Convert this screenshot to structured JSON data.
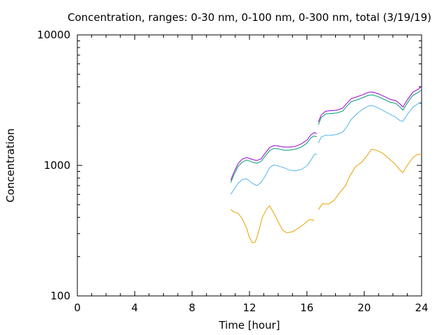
{
  "chart_data": {
    "type": "line",
    "title": "Concentration, ranges: 0-30 nm, 0-100 nm, 0-300 nm, total (3/19/19)",
    "xlabel": "Time [hour]",
    "ylabel": "Concentration",
    "xlim": [
      0,
      24
    ],
    "ylim": [
      100,
      10000
    ],
    "yscale": "log",
    "grid": false,
    "legend": "none",
    "xticks": [
      0,
      4,
      8,
      12,
      16,
      20,
      24
    ],
    "yticks": [
      100,
      1000,
      10000
    ],
    "xtick_labels": [
      "0",
      "4",
      "8",
      "12",
      "16",
      "20",
      "24"
    ],
    "ytick_labels": [
      "100",
      "1000",
      "10000"
    ],
    "series": [
      {
        "color": "#e6a000",
        "segments": [
          [
            [
              10.7,
              460
            ],
            [
              10.9,
              440
            ],
            [
              11.2,
              430
            ],
            [
              11.5,
              390
            ],
            [
              11.8,
              330
            ],
            [
              12.0,
              280
            ],
            [
              12.2,
              255
            ],
            [
              12.4,
              258
            ],
            [
              12.6,
              300
            ],
            [
              12.9,
              400
            ],
            [
              13.2,
              465
            ],
            [
              13.4,
              490
            ],
            [
              13.7,
              430
            ],
            [
              14.0,
              370
            ],
            [
              14.3,
              320
            ],
            [
              14.6,
              305
            ],
            [
              15.0,
              310
            ],
            [
              15.4,
              330
            ],
            [
              15.8,
              355
            ],
            [
              16.1,
              380
            ],
            [
              16.3,
              385
            ],
            [
              16.5,
              378
            ]
          ],
          [
            [
              16.8,
              460
            ],
            [
              17.1,
              510
            ],
            [
              17.5,
              505
            ],
            [
              17.9,
              540
            ],
            [
              18.3,
              620
            ],
            [
              18.7,
              700
            ],
            [
              19.0,
              830
            ],
            [
              19.4,
              980
            ],
            [
              19.8,
              1050
            ],
            [
              20.2,
              1190
            ],
            [
              20.5,
              1330
            ],
            [
              20.9,
              1300
            ],
            [
              21.3,
              1240
            ],
            [
              21.7,
              1130
            ],
            [
              22.1,
              1040
            ],
            [
              22.5,
              920
            ],
            [
              22.7,
              880
            ],
            [
              23.0,
              1000
            ],
            [
              23.4,
              1150
            ],
            [
              23.7,
              1210
            ],
            [
              24.0,
              1220
            ]
          ]
        ]
      },
      {
        "color": "#56b4e9",
        "segments": [
          [
            [
              10.7,
              600
            ],
            [
              10.9,
              650
            ],
            [
              11.2,
              730
            ],
            [
              11.5,
              780
            ],
            [
              11.8,
              790
            ],
            [
              12.2,
              730
            ],
            [
              12.5,
              700
            ],
            [
              12.8,
              740
            ],
            [
              13.1,
              830
            ],
            [
              13.4,
              960
            ],
            [
              13.7,
              1010
            ],
            [
              14.0,
              990
            ],
            [
              14.4,
              960
            ],
            [
              14.8,
              920
            ],
            [
              15.2,
              910
            ],
            [
              15.6,
              930
            ],
            [
              16.0,
              990
            ],
            [
              16.3,
              1100
            ],
            [
              16.5,
              1210
            ],
            [
              16.6,
              1225
            ],
            [
              16.7,
              1210
            ]
          ],
          [
            [
              16.8,
              1480
            ],
            [
              17.0,
              1650
            ],
            [
              17.3,
              1700
            ],
            [
              17.7,
              1700
            ],
            [
              18.1,
              1730
            ],
            [
              18.5,
              1800
            ],
            [
              18.8,
              1990
            ],
            [
              19.1,
              2250
            ],
            [
              19.5,
              2490
            ],
            [
              19.9,
              2700
            ],
            [
              20.3,
              2850
            ],
            [
              20.6,
              2870
            ],
            [
              21.0,
              2750
            ],
            [
              21.4,
              2600
            ],
            [
              21.8,
              2470
            ],
            [
              22.2,
              2340
            ],
            [
              22.5,
              2200
            ],
            [
              22.7,
              2180
            ],
            [
              23.0,
              2450
            ],
            [
              23.4,
              2800
            ],
            [
              23.8,
              3000
            ],
            [
              24.0,
              3050
            ]
          ]
        ]
      },
      {
        "color": "#009e73",
        "segments": [
          [
            [
              10.7,
              740
            ],
            [
              10.9,
              840
            ],
            [
              11.2,
              980
            ],
            [
              11.5,
              1060
            ],
            [
              11.8,
              1100
            ],
            [
              12.2,
              1060
            ],
            [
              12.5,
              1040
            ],
            [
              12.8,
              1070
            ],
            [
              13.1,
              1180
            ],
            [
              13.4,
              1300
            ],
            [
              13.7,
              1350
            ],
            [
              14.0,
              1340
            ],
            [
              14.4,
              1310
            ],
            [
              14.8,
              1310
            ],
            [
              15.2,
              1330
            ],
            [
              15.6,
              1380
            ],
            [
              16.0,
              1480
            ],
            [
              16.3,
              1630
            ],
            [
              16.5,
              1680
            ],
            [
              16.7,
              1660
            ]
          ],
          [
            [
              16.8,
              2050
            ],
            [
              17.0,
              2320
            ],
            [
              17.3,
              2480
            ],
            [
              17.7,
              2500
            ],
            [
              18.1,
              2520
            ],
            [
              18.5,
              2610
            ],
            [
              18.8,
              2850
            ],
            [
              19.1,
              3080
            ],
            [
              19.5,
              3180
            ],
            [
              19.9,
              3300
            ],
            [
              20.3,
              3450
            ],
            [
              20.6,
              3470
            ],
            [
              21.0,
              3350
            ],
            [
              21.4,
              3200
            ],
            [
              21.8,
              3050
            ],
            [
              22.2,
              2980
            ],
            [
              22.5,
              2800
            ],
            [
              22.7,
              2650
            ],
            [
              23.0,
              3000
            ],
            [
              23.4,
              3450
            ],
            [
              23.8,
              3650
            ],
            [
              24.0,
              3800
            ]
          ]
        ]
      },
      {
        "color": "#9400d3",
        "segments": [
          [
            [
              10.7,
              770
            ],
            [
              10.9,
              880
            ],
            [
              11.2,
              1030
            ],
            [
              11.5,
              1120
            ],
            [
              11.8,
              1150
            ],
            [
              12.2,
              1110
            ],
            [
              12.5,
              1090
            ],
            [
              12.8,
              1120
            ],
            [
              13.1,
              1240
            ],
            [
              13.4,
              1370
            ],
            [
              13.7,
              1420
            ],
            [
              14.0,
              1410
            ],
            [
              14.4,
              1380
            ],
            [
              14.8,
              1380
            ],
            [
              15.2,
              1400
            ],
            [
              15.6,
              1460
            ],
            [
              16.0,
              1560
            ],
            [
              16.3,
              1720
            ],
            [
              16.5,
              1780
            ],
            [
              16.7,
              1760
            ]
          ],
          [
            [
              16.8,
              2150
            ],
            [
              17.0,
              2430
            ],
            [
              17.3,
              2600
            ],
            [
              17.7,
              2630
            ],
            [
              18.1,
              2650
            ],
            [
              18.5,
              2750
            ],
            [
              18.8,
              3000
            ],
            [
              19.1,
              3250
            ],
            [
              19.5,
              3360
            ],
            [
              19.9,
              3480
            ],
            [
              20.3,
              3630
            ],
            [
              20.6,
              3650
            ],
            [
              21.0,
              3530
            ],
            [
              21.4,
              3370
            ],
            [
              21.8,
              3210
            ],
            [
              22.2,
              3140
            ],
            [
              22.5,
              2950
            ],
            [
              22.7,
              2800
            ],
            [
              23.0,
              3170
            ],
            [
              23.4,
              3650
            ],
            [
              23.8,
              3850
            ],
            [
              24.0,
              4050
            ]
          ]
        ]
      }
    ]
  }
}
